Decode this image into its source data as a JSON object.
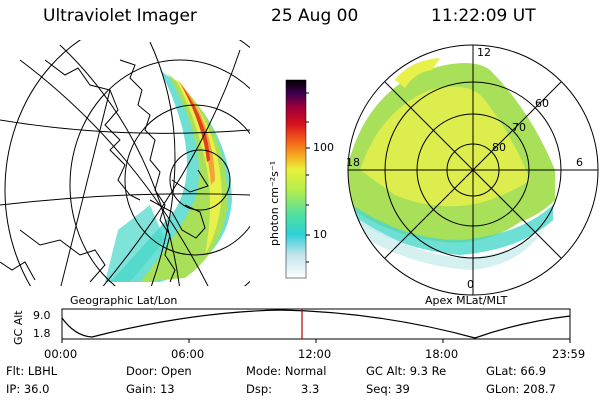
{
  "header": {
    "instrument": "Ultraviolet Imager",
    "date": "25 Aug 00",
    "time": "11:22:09 UT"
  },
  "colorbar": {
    "unit_label": "photon cm⁻²s⁻¹",
    "ticks": [
      "100",
      "10"
    ],
    "scale": "log"
  },
  "left_panel": {
    "label": "Geographic Lat/Lon"
  },
  "right_panel": {
    "label": "Apex MLat/MLT",
    "mlt_labels": [
      "12",
      "18",
      "6",
      "0"
    ],
    "mlat_labels": [
      "60",
      "70",
      "80"
    ]
  },
  "timeline": {
    "y_title": "GC Alt",
    "y_ticks": [
      "9.0",
      "1.8"
    ],
    "x_ticks": [
      "00:00",
      "06:00",
      "12:00",
      "18:00",
      "23:59"
    ],
    "marker_time": "11:22"
  },
  "info": {
    "row1": {
      "filter": "Flt: LBHL",
      "door": "Door: Open",
      "mode": "Mode: Normal",
      "gc_alt": "GC Alt: 9.3 Re",
      "glat": "GLat: 66.9"
    },
    "row2": {
      "ip": "IP: 36.0",
      "gain": "Gain: 13",
      "dsp_label": "Dsp:",
      "dsp_value": "3.3",
      "seq": "Seq: 39",
      "glon": "GLon: 208.7"
    }
  },
  "colors": {
    "aurora_green": "#a8e05a",
    "aurora_yellow": "#e8f04a",
    "aurora_cyan": "#49d7c9",
    "aurora_red": "#e04020",
    "marker": "#b00000"
  }
}
